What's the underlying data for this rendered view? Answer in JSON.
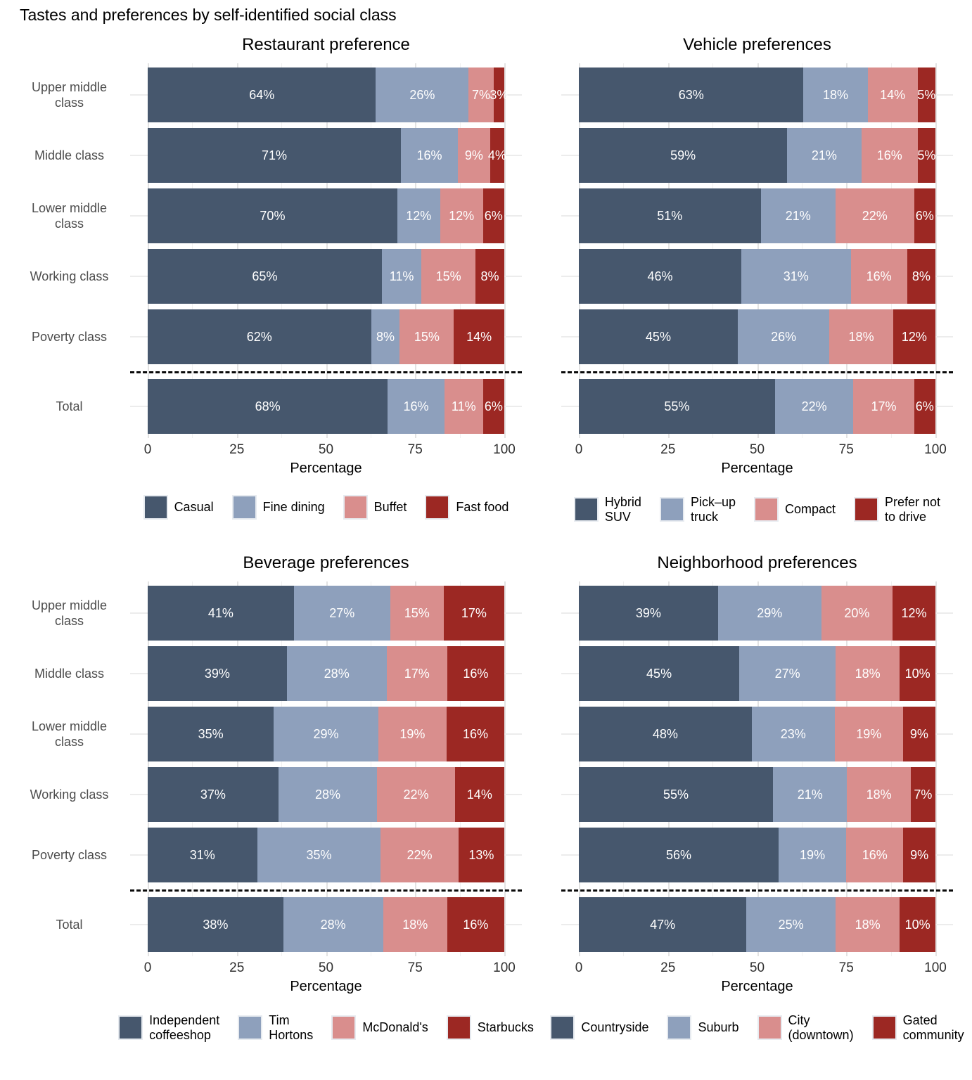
{
  "page_title": "Tastes and preferences by self-identified social class",
  "xaxis": {
    "label": "Percentage",
    "ticks": [
      0,
      25,
      50,
      75,
      100
    ],
    "range": [
      0,
      100
    ]
  },
  "categories": [
    "Upper middle class",
    "Middle class",
    "Lower middle class",
    "Working class",
    "Poverty class",
    "Total"
  ],
  "chart_data": [
    {
      "type": "bar",
      "stacked": true,
      "orientation": "horizontal",
      "title": "Restaurant preference",
      "xlabel": "Percentage",
      "xlim": [
        0,
        100
      ],
      "xticks": [
        0,
        25,
        50,
        75,
        100
      ],
      "grid": "vertical major+minor",
      "legend_position": "bottom",
      "value_suffix": "%",
      "separator_before": "Total",
      "show_category_labels": true,
      "categories": [
        "Upper middle class",
        "Middle class",
        "Lower middle class",
        "Working class",
        "Poverty class",
        "Total"
      ],
      "series": [
        {
          "name": "Casual",
          "legend": "Casual",
          "color": "#46576d",
          "values": [
            64,
            71,
            70,
            65,
            62,
            68
          ]
        },
        {
          "name": "Fine dining",
          "legend": "Fine dining",
          "color": "#8ea0bc",
          "values": [
            26,
            16,
            12,
            11,
            8,
            16
          ]
        },
        {
          "name": "Buffet",
          "legend": "Buffet",
          "color": "#d98e8d",
          "values": [
            7,
            9,
            12,
            15,
            15,
            11
          ]
        },
        {
          "name": "Fast food",
          "legend": "Fast food",
          "color": "#9c2823",
          "values": [
            3,
            4,
            6,
            8,
            14,
            6
          ]
        }
      ]
    },
    {
      "type": "bar",
      "stacked": true,
      "orientation": "horizontal",
      "title": "Vehicle preferences",
      "xlabel": "Percentage",
      "xlim": [
        0,
        100
      ],
      "xticks": [
        0,
        25,
        50,
        75,
        100
      ],
      "grid": "vertical major+minor",
      "legend_position": "bottom",
      "value_suffix": "%",
      "separator_before": "Total",
      "show_category_labels": false,
      "categories": [
        "Upper middle class",
        "Middle class",
        "Lower middle class",
        "Working class",
        "Poverty class",
        "Total"
      ],
      "series": [
        {
          "name": "Hybrid SUV",
          "legend": "Hybrid\nSUV",
          "color": "#46576d",
          "values": [
            63,
            59,
            51,
            46,
            45,
            55
          ]
        },
        {
          "name": "Pick-up truck",
          "legend": "Pick–up\ntruck",
          "color": "#8ea0bc",
          "values": [
            18,
            21,
            21,
            31,
            26,
            22
          ]
        },
        {
          "name": "Compact",
          "legend": "Compact",
          "color": "#d98e8d",
          "values": [
            14,
            16,
            22,
            16,
            18,
            17
          ]
        },
        {
          "name": "Prefer not to drive",
          "legend": "Prefer not\nto drive",
          "color": "#9c2823",
          "values": [
            5,
            5,
            6,
            8,
            12,
            6
          ]
        }
      ]
    },
    {
      "type": "bar",
      "stacked": true,
      "orientation": "horizontal",
      "title": "Beverage preferences",
      "xlabel": "Percentage",
      "xlim": [
        0,
        100
      ],
      "xticks": [
        0,
        25,
        50,
        75,
        100
      ],
      "grid": "vertical major+minor",
      "legend_position": "bottom",
      "value_suffix": "%",
      "separator_before": "Total",
      "show_category_labels": true,
      "categories": [
        "Upper middle class",
        "Middle class",
        "Lower middle class",
        "Working class",
        "Poverty class",
        "Total"
      ],
      "series": [
        {
          "name": "Independent coffeeshop",
          "legend": "Independent\ncoffeeshop",
          "color": "#46576d",
          "values": [
            41,
            39,
            35,
            37,
            31,
            38
          ]
        },
        {
          "name": "Tim Hortons",
          "legend": "Tim Hortons",
          "color": "#8ea0bc",
          "values": [
            27,
            28,
            29,
            28,
            35,
            28
          ]
        },
        {
          "name": "McDonald's",
          "legend": "McDonald's",
          "color": "#d98e8d",
          "values": [
            15,
            17,
            19,
            22,
            22,
            18
          ]
        },
        {
          "name": "Starbucks",
          "legend": "Starbucks",
          "color": "#9c2823",
          "values": [
            17,
            16,
            16,
            14,
            13,
            16
          ]
        }
      ]
    },
    {
      "type": "bar",
      "stacked": true,
      "orientation": "horizontal",
      "title": "Neighborhood preferences",
      "xlabel": "Percentage",
      "xlim": [
        0,
        100
      ],
      "xticks": [
        0,
        25,
        50,
        75,
        100
      ],
      "grid": "vertical major+minor",
      "legend_position": "bottom",
      "value_suffix": "%",
      "separator_before": "Total",
      "show_category_labels": false,
      "categories": [
        "Upper middle class",
        "Middle class",
        "Lower middle class",
        "Working class",
        "Poverty class",
        "Total"
      ],
      "series": [
        {
          "name": "Countryside",
          "legend": "Countryside",
          "color": "#46576d",
          "values": [
            39,
            45,
            48,
            55,
            56,
            47
          ]
        },
        {
          "name": "Suburb",
          "legend": "Suburb",
          "color": "#8ea0bc",
          "values": [
            29,
            27,
            23,
            21,
            19,
            25
          ]
        },
        {
          "name": "City (downtown)",
          "legend": "City\n(downtown)",
          "color": "#d98e8d",
          "values": [
            20,
            18,
            19,
            18,
            16,
            18
          ]
        },
        {
          "name": "Gated community",
          "legend": "Gated\ncommunity",
          "color": "#9c2823",
          "values": [
            12,
            10,
            9,
            7,
            9,
            10
          ]
        }
      ]
    }
  ]
}
